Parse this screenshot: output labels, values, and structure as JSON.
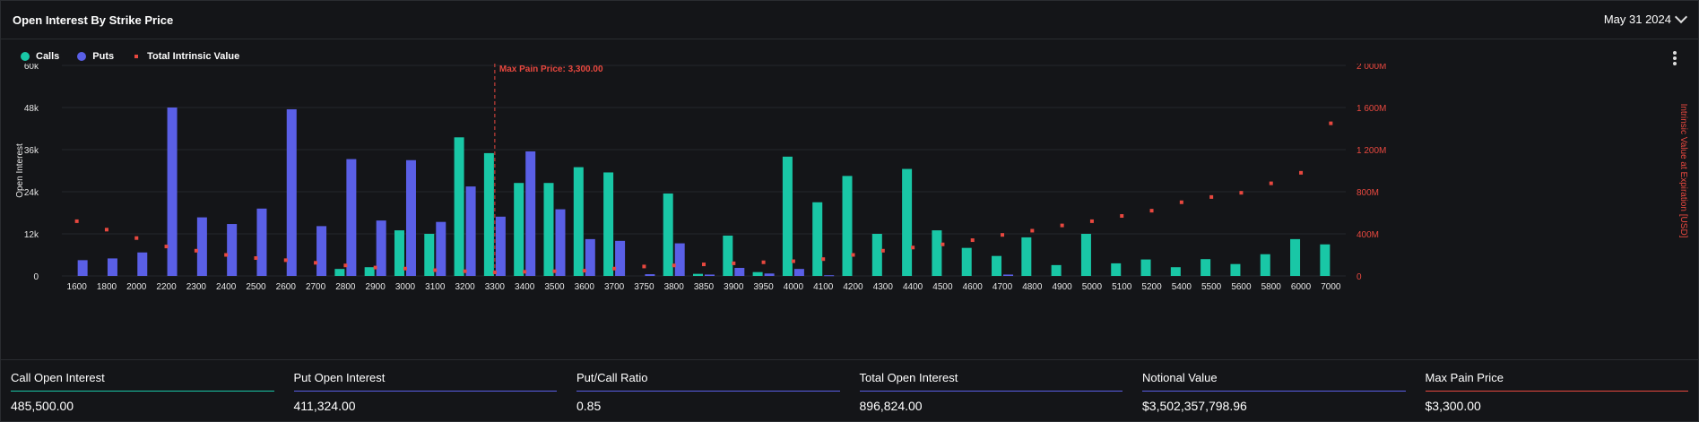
{
  "header": {
    "title": "Open Interest By Strike Price",
    "date": "May 31 2024"
  },
  "legend": {
    "calls": "Calls",
    "puts": "Puts",
    "intrinsic": "Total Intrinsic Value"
  },
  "colors": {
    "calls": "#19c7a6",
    "puts": "#5a5fe6",
    "intrinsic": "#e8483f",
    "background": "#141518"
  },
  "chart_data": {
    "type": "bar",
    "categories": [
      "1600",
      "1800",
      "2000",
      "2200",
      "2300",
      "2400",
      "2500",
      "2600",
      "2700",
      "2800",
      "2900",
      "3000",
      "3100",
      "3200",
      "3300",
      "3400",
      "3500",
      "3600",
      "3700",
      "3750",
      "3800",
      "3850",
      "3900",
      "3950",
      "4000",
      "4100",
      "4200",
      "4300",
      "4400",
      "4500",
      "4600",
      "4700",
      "4800",
      "4900",
      "5000",
      "5100",
      "5200",
      "5400",
      "5500",
      "5600",
      "5800",
      "6000",
      "7000"
    ],
    "series": [
      {
        "name": "Calls",
        "axis": "left",
        "values": [
          0,
          0,
          0,
          0,
          0,
          0,
          0,
          0,
          0,
          2000,
          2500,
          13000,
          12000,
          39500,
          35000,
          26500,
          26500,
          31000,
          29500,
          0,
          23500,
          600,
          11500,
          1100,
          34000,
          21000,
          28500,
          12000,
          30500,
          13000,
          8000,
          5700,
          11000,
          3100,
          12000,
          3600,
          4700,
          2500,
          4800,
          3400,
          6200,
          10500,
          9000
        ]
      },
      {
        "name": "Puts",
        "axis": "left",
        "values": [
          4500,
          5000,
          6700,
          48000,
          16700,
          14800,
          19200,
          47500,
          14200,
          33300,
          15800,
          33000,
          15400,
          25500,
          16900,
          35500,
          19000,
          10500,
          10000,
          500,
          9300,
          400,
          2300,
          700,
          2000,
          200,
          0,
          0,
          0,
          0,
          0,
          400,
          0,
          0,
          0,
          0,
          0,
          0,
          0,
          0,
          0,
          0,
          0
        ]
      },
      {
        "name": "Total Intrinsic Value",
        "axis": "right",
        "type": "scatter",
        "values": [
          520,
          440,
          360,
          280,
          240,
          200,
          170,
          150,
          125,
          100,
          80,
          70,
          55,
          45,
          35,
          40,
          45,
          50,
          70,
          90,
          100,
          110,
          120,
          130,
          140,
          160,
          200,
          240,
          270,
          300,
          340,
          390,
          430,
          480,
          520,
          570,
          620,
          700,
          750,
          790,
          880,
          980,
          1450
        ]
      }
    ],
    "y_left": {
      "label": "Open Interest",
      "ylim": [
        0,
        60000
      ],
      "ticks": [
        "0",
        "12k",
        "24k",
        "36k",
        "48k",
        "60k"
      ]
    },
    "y_right": {
      "label": "Intrinsic Value at Expiration [USD]",
      "ylim": [
        0,
        2000
      ],
      "ticks": [
        "0",
        "400M",
        "800M",
        "1 200M",
        "1 600M",
        "2 000M"
      ]
    },
    "marker": {
      "category": "3300",
      "label": "Max Pain Price: 3,300.00"
    },
    "grid": true,
    "legend_position": "top-left"
  },
  "stats": [
    {
      "label": "Call Open Interest",
      "value": "485,500.00",
      "color": "#19c7a6"
    },
    {
      "label": "Put Open Interest",
      "value": "411,324.00",
      "color": "#5a5fe6"
    },
    {
      "label": "Put/Call Ratio",
      "value": "0.85",
      "color": "#5a5fe6"
    },
    {
      "label": "Total Open Interest",
      "value": "896,824.00",
      "color": "#5a5fe6"
    },
    {
      "label": "Notional Value",
      "value": "$3,502,357,798.96",
      "color": "#5a5fe6"
    },
    {
      "label": "Max Pain Price",
      "value": "$3,300.00",
      "color": "#e8483f"
    }
  ]
}
